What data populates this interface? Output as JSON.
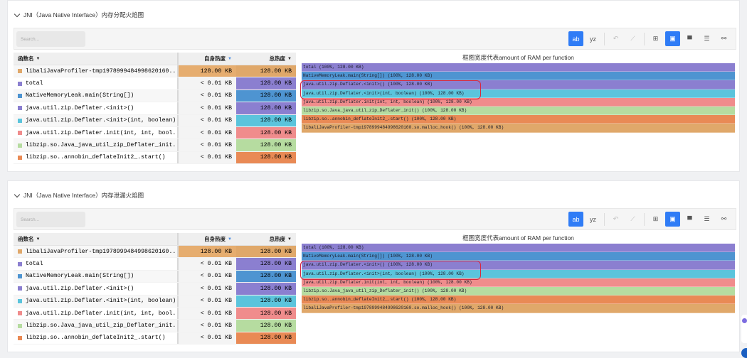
{
  "panels": [
    {
      "title": "JNI（Java Native Interface）内存分配火焰图",
      "search_placeholder": "Search...",
      "toolbar": {
        "buttons": [
          {
            "name": "ab-icon",
            "label": "ab",
            "active": true
          },
          {
            "name": "yz-icon",
            "label": "yz",
            "active": false
          },
          {
            "name": "undo-icon",
            "label": "↶",
            "dim": true
          },
          {
            "name": "magic-icon",
            "label": "⟋",
            "dim": true
          },
          {
            "name": "table-icon",
            "label": "⊞",
            "active": false
          },
          {
            "name": "table-flame-icon",
            "label": "▣",
            "active": true
          },
          {
            "name": "flame-icon",
            "label": "▀",
            "active": false
          },
          {
            "name": "sandwich-icon",
            "label": "☰",
            "active": false
          },
          {
            "name": "graph-icon",
            "label": "⚯",
            "active": false
          }
        ]
      },
      "table": {
        "headers": {
          "name": "函数名",
          "self": "自身热度",
          "total": "总热度"
        },
        "rows": [
          {
            "name": "libaliJavaProfiler-tmp1978999484998620160...",
            "self": "128.00 KB",
            "total": "128.00 KB",
            "color": "#e0a86a",
            "selfColor": "#e6ad6f"
          },
          {
            "name": "total",
            "self": "< 0.01 KB",
            "total": "128.00 KB",
            "color": "#8b7fd0"
          },
          {
            "name": "NativeMemoryLeak.main(String[])",
            "self": "< 0.01 KB",
            "total": "128.00 KB",
            "color": "#4e94d1"
          },
          {
            "name": "java.util.zip.Deflater.<init>()",
            "self": "< 0.01 KB",
            "total": "128.00 KB",
            "color": "#8b7fd0"
          },
          {
            "name": "java.util.zip.Deflater.<init>(int, boolean)",
            "self": "< 0.01 KB",
            "total": "128.00 KB",
            "color": "#5bc4dc"
          },
          {
            "name": "java.util.zip.Deflater.init(int, int, bool...",
            "self": "< 0.01 KB",
            "total": "128.00 KB",
            "color": "#f08c8c"
          },
          {
            "name": "libzip.so.Java_java_util_zip_Deflater_init...",
            "self": "< 0.01 KB",
            "total": "128.00 KB",
            "color": "#b6dca0"
          },
          {
            "name": "libzip.so..annobin_deflateInit2_.start()",
            "self": "< 0.01 KB",
            "total": "128.00 KB",
            "color": "#e98a55"
          }
        ]
      },
      "flame": {
        "title": "框图宽度代表amount of RAM per function",
        "bars": [
          {
            "label": "total (100%, 128.00 KB)",
            "color": "#8b7fd0"
          },
          {
            "label": "NativeMemoryLeak.main(String[]) (100%, 128.00 KB)",
            "color": "#4e94d1"
          },
          {
            "label": "java.util.zip.Deflater.<init>() (100%, 128.00 KB)",
            "color": "#8b7fd0"
          },
          {
            "label": "java.util.zip.Deflater.<init>(int, boolean) (100%, 128.00 KB)",
            "color": "#5bc4dc"
          },
          {
            "label": "java.util.zip.Deflater.init(int, int, boolean) (100%, 128.00 KB)",
            "color": "#f08c8c"
          },
          {
            "label": "libzip.so.Java_java_util_zip_Deflater_init() (100%, 128.00 KB)",
            "color": "#b6dca0"
          },
          {
            "label": "libzip.so..annobin_deflateInit2_.start() (100%, 128.00 KB)",
            "color": "#e98a55"
          },
          {
            "label": "libaliJavaProfiler-tmp1978999484998620160.so.malloc_hook() (100%, 128.00 KB)",
            "color": "#e0a86a"
          }
        ]
      }
    },
    {
      "title": "JNI（Java Native Interface）内存泄漏火焰图",
      "search_placeholder": "Search...",
      "table": {
        "headers": {
          "name": "函数名",
          "self": "自身热度",
          "total": "总热度"
        },
        "rows": [
          {
            "name": "libaliJavaProfiler-tmp1978999484998620160...",
            "self": "128.00 KB",
            "total": "128.00 KB",
            "color": "#e0a86a"
          },
          {
            "name": "total",
            "self": "< 0.01 KB",
            "total": "128.00 KB",
            "color": "#8b7fd0"
          },
          {
            "name": "NativeMemoryLeak.main(String[])",
            "self": "< 0.01 KB",
            "total": "128.00 KB",
            "color": "#4e94d1"
          },
          {
            "name": "java.util.zip.Deflater.<init>()",
            "self": "< 0.01 KB",
            "total": "128.00 KB",
            "color": "#8b7fd0"
          },
          {
            "name": "java.util.zip.Deflater.<init>(int, boolean)",
            "self": "< 0.01 KB",
            "total": "128.00 KB",
            "color": "#5bc4dc"
          },
          {
            "name": "java.util.zip.Deflater.init(int, int, bool...",
            "self": "< 0.01 KB",
            "total": "128.00 KB",
            "color": "#f08c8c"
          },
          {
            "name": "libzip.so.Java_java_util_zip_Deflater_init...",
            "self": "< 0.01 KB",
            "total": "128.00 KB",
            "color": "#b6dca0"
          },
          {
            "name": "libzip.so..annobin_deflateInit2_.start()",
            "self": "< 0.01 KB",
            "total": "128.00 KB",
            "color": "#e98a55"
          }
        ]
      },
      "flame": {
        "title": "框图宽度代表amount of RAM per function",
        "bars": [
          {
            "label": "total (100%, 128.00 KB)",
            "color": "#8b7fd0"
          },
          {
            "label": "NativeMemoryLeak.main(String[]) (100%, 128.00 KB)",
            "color": "#4e94d1"
          },
          {
            "label": "java.util.zip.Deflater.<init>() (100%, 128.00 KB)",
            "color": "#8b7fd0"
          },
          {
            "label": "java.util.zip.Deflater.<init>(int, boolean) (100%, 128.00 KB)",
            "color": "#5bc4dc"
          },
          {
            "label": "java.util.zip.Deflater.init(int, int, boolean) (100%, 128.00 KB)",
            "color": "#f08c8c"
          },
          {
            "label": "libzip.so.Java_java_util_zip_Deflater_init() (100%, 128.00 KB)",
            "color": "#b6dca0"
          },
          {
            "label": "libzip.so..annobin_deflateInit2_.start() (100%, 128.00 KB)",
            "color": "#e98a55"
          },
          {
            "label": "libaliJavaProfiler-tmp1978999484998620160.so.malloc_hook() (100%, 128.00 KB)",
            "color": "#e0a86a"
          }
        ]
      }
    }
  ]
}
